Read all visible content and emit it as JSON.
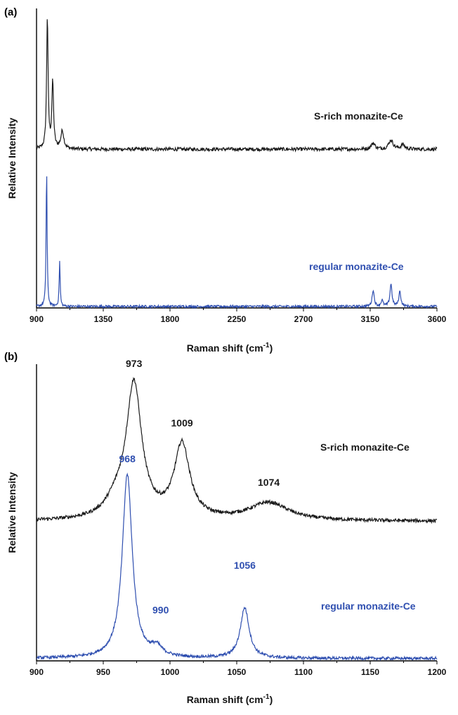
{
  "colors": {
    "black_series": "#1a1a1a",
    "blue_series": "#2f4fb0",
    "axis": "#000000"
  },
  "chart_data": [
    {
      "panel_label": "(a)",
      "type": "line",
      "xlabel": "Raman shift (cm",
      "xlabel_sup": "-1",
      "xlabel_close": ")",
      "ylabel": "Relative Intensity",
      "xlim": [
        900,
        3600
      ],
      "ylim": [
        0,
        1
      ],
      "xticks": [
        "900",
        "1350",
        "1800",
        "2250",
        "2700",
        "3150",
        "3600"
      ],
      "grid": false,
      "series": [
        {
          "name": "S-rich monazite-Ce",
          "color": "#1a1a1a",
          "baseline": 0.53,
          "peaks": [
            {
              "x": 973,
              "h": 0.44,
              "w": 6
            },
            {
              "x": 1009,
              "h": 0.22,
              "w": 7
            },
            {
              "x": 1074,
              "h": 0.06,
              "w": 12
            },
            {
              "x": 3170,
              "h": 0.02,
              "w": 15
            },
            {
              "x": 3290,
              "h": 0.03,
              "w": 18
            },
            {
              "x": 3370,
              "h": 0.015,
              "w": 15
            }
          ]
        },
        {
          "name": "regular monazite-Ce",
          "color": "#2f4fb0",
          "baseline": 0.005,
          "peaks": [
            {
              "x": 968,
              "h": 0.46,
              "w": 4
            },
            {
              "x": 1056,
              "h": 0.15,
              "w": 4
            },
            {
              "x": 3170,
              "h": 0.055,
              "w": 8
            },
            {
              "x": 3230,
              "h": 0.02,
              "w": 8
            },
            {
              "x": 3290,
              "h": 0.075,
              "w": 8
            },
            {
              "x": 3350,
              "h": 0.05,
              "w": 8
            }
          ]
        }
      ]
    },
    {
      "panel_label": "(b)",
      "type": "line",
      "xlabel": "Raman shift (cm",
      "xlabel_sup": "-1",
      "xlabel_close": ")",
      "ylabel": "Relative Intensity",
      "xlim": [
        900,
        1200
      ],
      "ylim": [
        0,
        1
      ],
      "xticks": [
        "900",
        "950",
        "1000",
        "1050",
        "1100",
        "1150",
        "1200"
      ],
      "grid": false,
      "series": [
        {
          "name": "S-rich monazite-Ce",
          "color": "#1a1a1a",
          "baseline": 0.47,
          "peaks": [
            {
              "x": 973,
              "h": 0.45,
              "w": 7
            },
            {
              "x": 1009,
              "h": 0.25,
              "w": 7
            },
            {
              "x": 1074,
              "h": 0.06,
              "w": 18
            },
            {
              "x": 960,
              "h": 0.05,
              "w": 10
            }
          ],
          "annotations": [
            "973",
            "1009",
            "1074"
          ],
          "annotation_x": [
            973,
            1009,
            1074
          ],
          "annotation_y": [
            0.99,
            0.79,
            0.59
          ]
        },
        {
          "name": "regular monazite-Ce",
          "color": "#2f4fb0",
          "baseline": 0.008,
          "peaks": [
            {
              "x": 968,
              "h": 0.62,
              "w": 4.5
            },
            {
              "x": 990,
              "h": 0.03,
              "w": 5
            },
            {
              "x": 1056,
              "h": 0.17,
              "w": 4
            }
          ],
          "annotations": [
            "968",
            "990",
            "1056"
          ],
          "annotation_x": [
            968,
            993,
            1056
          ],
          "annotation_y": [
            0.67,
            0.16,
            0.31
          ]
        }
      ]
    }
  ]
}
